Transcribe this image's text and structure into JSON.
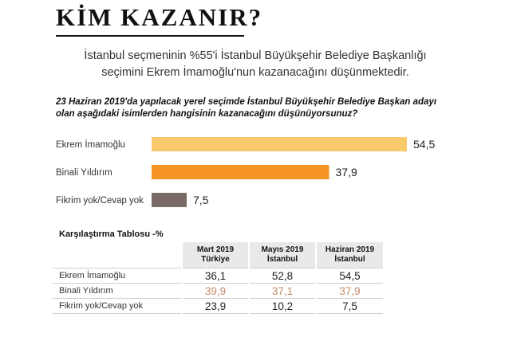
{
  "header": {
    "title": "KİM KAZANIR?",
    "subtitle_line1": "İstanbul seçmeninin %55'i İstanbul Büyükşehir Belediye Başkanlığı",
    "subtitle_line2": "seçimini Ekrem İmamoğlu'nun kazanacağını düşünmektedir.",
    "question_line1": "23 Haziran 2019'da yapılacak yerel seçimde İstanbul Büyükşehir Belediye Başkan adayı",
    "question_line2": "olan aşağıdaki isimlerden hangisinin kazanacağını düşünüyorsunuz?"
  },
  "chart_data": {
    "type": "bar",
    "orientation": "horizontal",
    "categories": [
      "Ekrem İmamoğlu",
      "Binali Yıldırım",
      "Fikrim yok/Cevap yok"
    ],
    "values": [
      54.5,
      37.9,
      7.5
    ],
    "value_labels": [
      "54,5",
      "37,9",
      "7,5"
    ],
    "colors": [
      "#f9c96b",
      "#f59324",
      "#7a6a66"
    ],
    "xlim": [
      0,
      54.5
    ],
    "grid": false,
    "legend": "none"
  },
  "table": {
    "title": "Karşılaştırma Tablosu -%",
    "columns": [
      {
        "line1": "Mart 2019",
        "line2": "Türkiye"
      },
      {
        "line1": "Mayıs 2019",
        "line2": "İstanbul"
      },
      {
        "line1": "Haziran 2019",
        "line2": "İstanbul"
      }
    ],
    "rows": [
      {
        "label": "Ekrem İmamoğlu",
        "values": [
          "36,1",
          "52,8",
          "54,5"
        ],
        "color": "#222222"
      },
      {
        "label": "Binali Yıldırım",
        "values": [
          "39,9",
          "37,1",
          "37,9"
        ],
        "color": "#c08c66"
      },
      {
        "label": "Fikrim yok/Cevap yok",
        "values": [
          "23,9",
          "10,2",
          "7,5"
        ],
        "color": "#222222"
      }
    ]
  }
}
